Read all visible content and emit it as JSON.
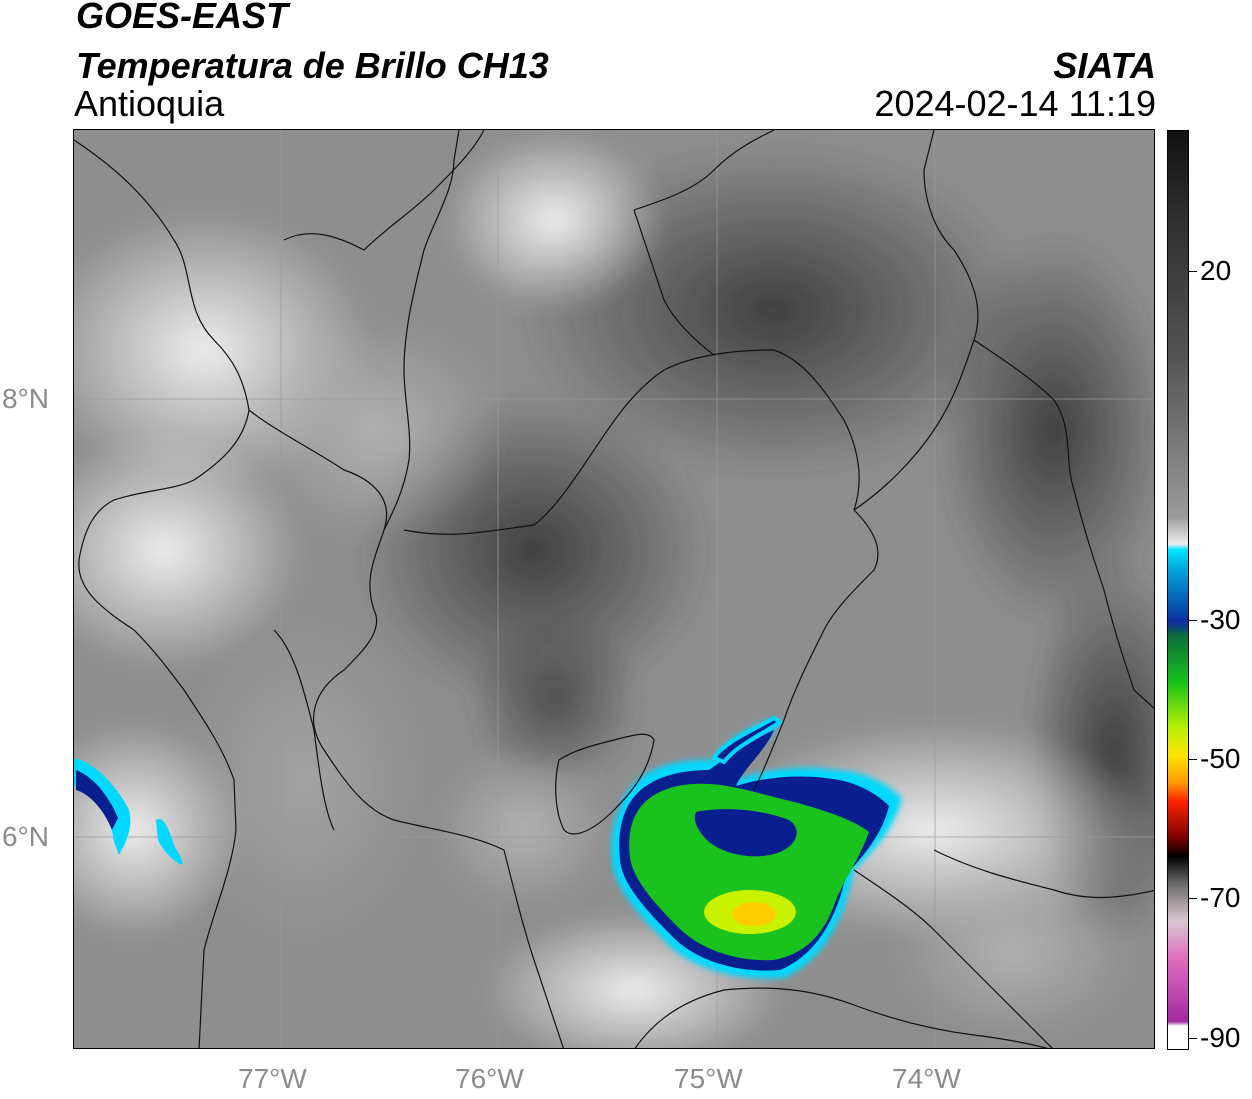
{
  "header": {
    "title": "GOES-EAST",
    "subtitle": "Temperatura de Brillo CH13",
    "region": "Antioquia",
    "organization": "SIATA",
    "timestamp": "2024-02-14 11:19"
  },
  "map": {
    "lat_labels": [
      "8°N",
      "6°N"
    ],
    "lon_labels": [
      "77°W",
      "76°W",
      "75°W",
      "74°W"
    ],
    "gridline_color": "#9a9a9a",
    "border_color": "#000000",
    "storm_colors": {
      "cyan": "#00d8ff",
      "blue": "#0a1f8f",
      "green": "#19c21c",
      "yellow": "#ffe400",
      "orange": "#ff9900"
    }
  },
  "colorbar": {
    "tick_labels": [
      "20",
      "-30",
      "-50",
      "-70",
      "-90"
    ],
    "segments": [
      [
        "#111111",
        0
      ],
      [
        "#2b2b2b",
        8
      ],
      [
        "#555555",
        25
      ],
      [
        "#9a9a9a",
        42
      ],
      [
        "#eeeeee",
        45
      ],
      [
        "#00e5ff",
        45.6
      ],
      [
        "#00a0d8",
        48
      ],
      [
        "#0b2d9b",
        53.5
      ],
      [
        "#0d6e3b",
        55
      ],
      [
        "#16c11b",
        60
      ],
      [
        "#b8f000",
        65
      ],
      [
        "#ffe400",
        68
      ],
      [
        "#ff9900",
        71
      ],
      [
        "#ff2200",
        73
      ],
      [
        "#7a0000",
        77
      ],
      [
        "#000000",
        79
      ],
      [
        "#6a6a6a",
        82
      ],
      [
        "#d8c8d0",
        86
      ],
      [
        "#e070c0",
        90
      ],
      [
        "#a12aa0",
        97
      ],
      [
        "#ffffff",
        97.5
      ]
    ]
  }
}
